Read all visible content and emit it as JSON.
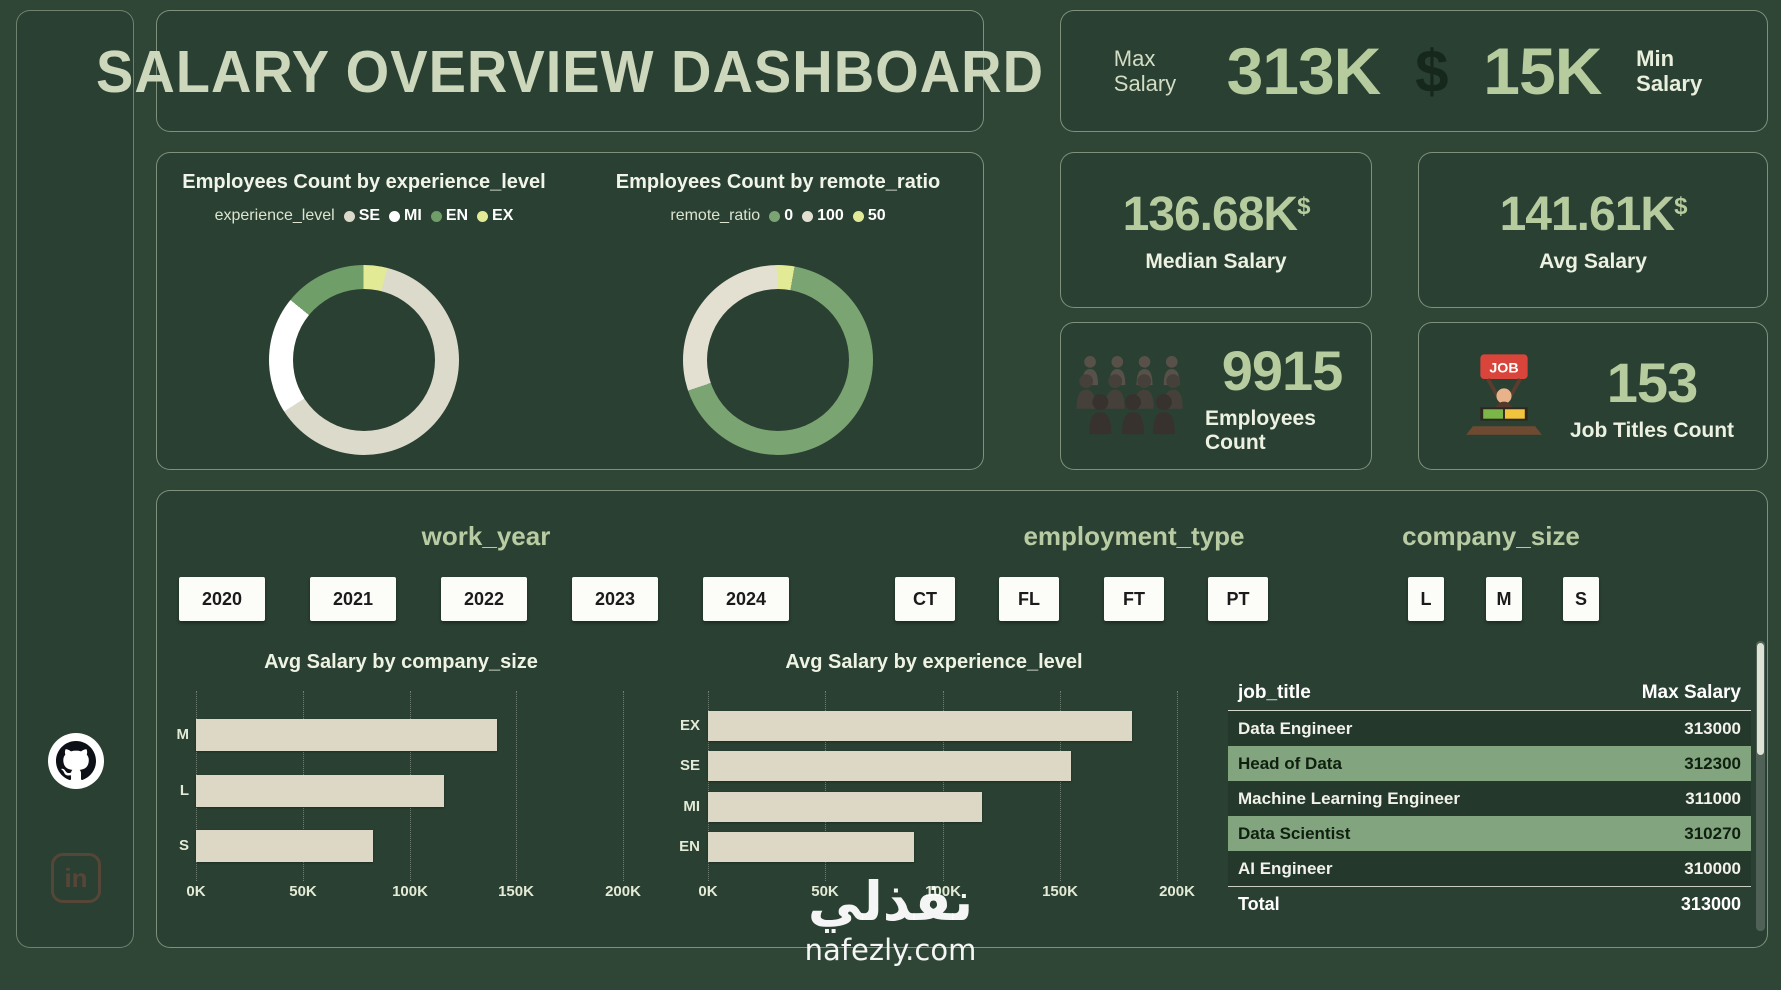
{
  "page": {
    "watermark_arabic": "نفذلي",
    "watermark_latin": "nafezly.com"
  },
  "sidebar": {
    "linkedin_text": "in"
  },
  "header": {
    "title": "SALARY OVERVIEW DASHBOARD"
  },
  "kpi": {
    "max": {
      "label": "Max Salary",
      "value": "313K"
    },
    "currency_symbol": "$",
    "min": {
      "label": "Min Salary",
      "value": "15K"
    },
    "median": {
      "value": "136.68K",
      "unit": "$",
      "label": "Median Salary"
    },
    "avg": {
      "value": "141.61K",
      "unit": "$",
      "label": "Avg Salary"
    },
    "employees": {
      "value": "9915",
      "label": "Employees Count"
    },
    "job_titles": {
      "value": "153",
      "label": "Job Titles Count",
      "icon_text": "JOB"
    }
  },
  "slicers": {
    "work_year": {
      "label": "work_year",
      "options": [
        "2020",
        "2021",
        "2022",
        "2023",
        "2024"
      ]
    },
    "employment_type": {
      "label": "employment_type",
      "options": [
        "CT",
        "FL",
        "FT",
        "PT"
      ]
    },
    "company_size": {
      "label": "company_size",
      "options": [
        "L",
        "M",
        "S"
      ]
    }
  },
  "chart_data": [
    {
      "type": "pie",
      "subtype": "donut",
      "title": "Employees Count by experience_level",
      "legend_label": "experience_level",
      "legend_position": "top",
      "categories": [
        "SE",
        "MI",
        "EN",
        "EX"
      ],
      "values_pct": [
        62,
        20,
        14,
        4
      ],
      "colors": [
        "#dcdacb",
        "#ffffff",
        "#6f9e69",
        "#e3ea96"
      ],
      "rotation_deg": 14
    },
    {
      "type": "pie",
      "subtype": "donut",
      "title": "Employees Count by remote_ratio",
      "legend_label": "remote_ratio",
      "legend_position": "top",
      "categories": [
        "0",
        "100",
        "50"
      ],
      "values_pct": [
        67,
        30,
        3
      ],
      "colors": [
        "#7aa471",
        "#e3e0d1",
        "#e3ea96"
      ],
      "rotation_deg": 10
    },
    {
      "type": "bar",
      "orientation": "horizontal",
      "title": "Avg Salary by company_size",
      "categories": [
        "M",
        "L",
        "S"
      ],
      "values": [
        141000,
        116000,
        83000
      ],
      "xlim": [
        0,
        200000
      ],
      "x_ticks": [
        "0K",
        "50K",
        "100K",
        "150K",
        "200K"
      ],
      "grid": "dotted-vertical",
      "bar_color": "#ddd8c6"
    },
    {
      "type": "bar",
      "orientation": "horizontal",
      "title": "Avg Salary by experience_level",
      "categories": [
        "EX",
        "SE",
        "MI",
        "EN"
      ],
      "values": [
        181000,
        155000,
        117000,
        88000
      ],
      "xlim": [
        0,
        200000
      ],
      "x_ticks": [
        "0K",
        "50K",
        "100K",
        "150K",
        "200K"
      ],
      "grid": "dotted-vertical",
      "bar_color": "#ddd8c6"
    },
    {
      "type": "table",
      "columns": [
        "job_title",
        "Max Salary"
      ],
      "rows": [
        [
          "Data Engineer",
          "313000"
        ],
        [
          "Head of Data",
          "312300"
        ],
        [
          "Machine Learning Engineer",
          "311000"
        ],
        [
          "Data Scientist",
          "310270"
        ],
        [
          "AI Engineer",
          "310000"
        ]
      ],
      "total": [
        "Total",
        "313000"
      ]
    }
  ]
}
